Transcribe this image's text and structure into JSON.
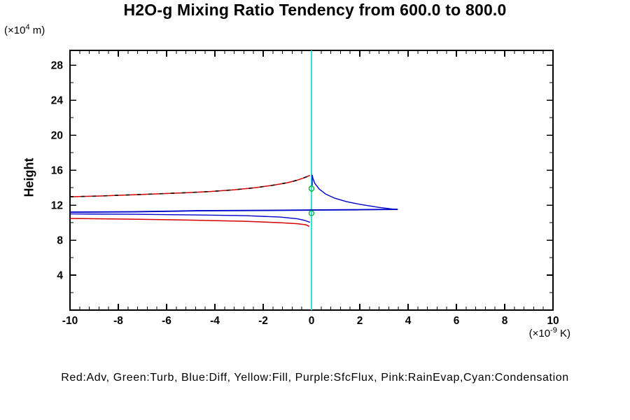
{
  "title": "H2O-g Mixing Ratio Tendency from 600.0 to 800.0",
  "y_axis": {
    "title": "Height",
    "unit_pre": "(×10",
    "unit_sup": "4",
    "unit_post": " m)"
  },
  "x_axis": {
    "unit_pre": "(×10",
    "unit_sup": "-9",
    "unit_post": " K)"
  },
  "legend_caption": "Red:Adv, Green:Turb, Blue:Diff, Yellow:Fill, Purple:SfcFlux, Pink:RainEvap,Cyan:Condensation",
  "colors": {
    "red": "#d40000",
    "green": "#00b832",
    "blue": "#0000cc",
    "cyan": "#2de4e4",
    "black": "#000000",
    "frame": "#000000"
  },
  "chart_data": {
    "type": "line",
    "title": "H2O-g Mixing Ratio Tendency from 600.0 to 800.0",
    "xlabel": "(×10⁻⁹ K)",
    "ylabel": "Height (×10⁴ m)",
    "xlim": [
      -10,
      10
    ],
    "ylim": [
      0,
      29.7
    ],
    "grid": false,
    "x_major_ticks": [
      -10,
      -8,
      -6,
      -4,
      -2,
      0,
      2,
      4,
      6,
      8,
      10
    ],
    "x_tick_labels": [
      "-10",
      "-8",
      "-6",
      "-4",
      "-2",
      "0",
      "2",
      "4",
      "6",
      "8",
      "10"
    ],
    "x_minor_step": 0.4,
    "y_labeled_ticks": [
      4,
      8,
      12,
      16,
      20,
      24,
      28
    ],
    "y_tick_labels": [
      "4",
      "8",
      "12",
      "16",
      "20",
      "24",
      "28"
    ],
    "y_minor_step": 2,
    "series": [
      {
        "name": "condensation-zero-line",
        "legend": "Condensation",
        "color_key": "cyan",
        "width": 2,
        "points": [
          [
            0,
            0
          ],
          [
            0,
            29.7
          ]
        ]
      },
      {
        "name": "adv-upper",
        "legend": "Adv",
        "color_key": "red",
        "width": 1.5,
        "points": [
          [
            -10,
            12.96
          ],
          [
            -8.84,
            13.04
          ],
          [
            -7.68,
            13.16
          ],
          [
            -6.52,
            13.28
          ],
          [
            -5.36,
            13.4
          ],
          [
            -4.2,
            13.56
          ],
          [
            -3.19,
            13.76
          ],
          [
            -2.32,
            14.0
          ],
          [
            -1.59,
            14.28
          ],
          [
            -1.01,
            14.56
          ],
          [
            -0.61,
            14.84
          ],
          [
            -0.35,
            15.08
          ],
          [
            -0.17,
            15.28
          ],
          [
            -0.06,
            15.4
          ]
        ]
      },
      {
        "name": "tendency-dashed",
        "legend": "",
        "color_key": "black",
        "width": 1.6,
        "dash": [
          5,
          11
        ],
        "points": [
          [
            -10,
            12.96
          ],
          [
            -8.84,
            13.04
          ],
          [
            -7.68,
            13.16
          ],
          [
            -6.52,
            13.28
          ],
          [
            -5.36,
            13.4
          ],
          [
            -4.2,
            13.56
          ],
          [
            -3.19,
            13.76
          ],
          [
            -2.32,
            14.0
          ],
          [
            -1.59,
            14.28
          ],
          [
            -1.01,
            14.56
          ],
          [
            -0.61,
            14.84
          ],
          [
            -0.35,
            15.08
          ],
          [
            -0.17,
            15.28
          ],
          [
            -0.06,
            15.4
          ]
        ]
      },
      {
        "name": "diff-flat",
        "legend": "Diff",
        "color_key": "blue",
        "width": 1.9,
        "points": [
          [
            -10,
            11.2
          ],
          [
            -7.39,
            11.24
          ],
          [
            -4.78,
            11.36
          ],
          [
            -2.0,
            11.4
          ],
          [
            0,
            11.44
          ],
          [
            2.0,
            11.48
          ],
          [
            3.57,
            11.52
          ]
        ]
      },
      {
        "name": "diff-spike",
        "legend": "Diff",
        "color_key": "blue",
        "width": 1.4,
        "points": [
          [
            3.57,
            11.48
          ],
          [
            2.75,
            11.76
          ],
          [
            2.03,
            12.08
          ],
          [
            1.45,
            12.4
          ],
          [
            0.96,
            12.8
          ],
          [
            0.58,
            13.28
          ],
          [
            0.32,
            13.84
          ],
          [
            0.14,
            14.48
          ],
          [
            0.06,
            15.04
          ],
          [
            0.03,
            15.44
          ],
          [
            0.03,
            14.24
          ]
        ]
      },
      {
        "name": "diff-lower",
        "legend": "Diff",
        "color_key": "blue",
        "width": 1.4,
        "points": [
          [
            -10,
            11.0
          ],
          [
            -7.39,
            10.96
          ],
          [
            -4.78,
            10.88
          ],
          [
            -2.75,
            10.8
          ],
          [
            -1.3,
            10.64
          ],
          [
            -0.58,
            10.44
          ],
          [
            -0.26,
            10.24
          ],
          [
            -0.06,
            10.04
          ]
        ]
      },
      {
        "name": "adv-lower",
        "legend": "Adv",
        "color_key": "red",
        "width": 1.5,
        "points": [
          [
            -10,
            10.48
          ],
          [
            -7.39,
            10.4
          ],
          [
            -4.78,
            10.28
          ],
          [
            -2.75,
            10.16
          ],
          [
            -1.3,
            10.0
          ],
          [
            -0.58,
            9.88
          ],
          [
            -0.23,
            9.76
          ],
          [
            -0.09,
            9.56
          ]
        ]
      },
      {
        "name": "turb-loop-upper",
        "legend": "Turb",
        "color_key": "green",
        "width": 1.4,
        "type": "ellipse",
        "cx": 0,
        "cy": 13.9,
        "rx": 0.1,
        "ry": 0.3
      },
      {
        "name": "turb-loop-lower",
        "legend": "Turb",
        "color_key": "green",
        "width": 1.4,
        "type": "ellipse",
        "cx": 0,
        "cy": 11.08,
        "rx": 0.1,
        "ry": 0.28
      }
    ]
  }
}
